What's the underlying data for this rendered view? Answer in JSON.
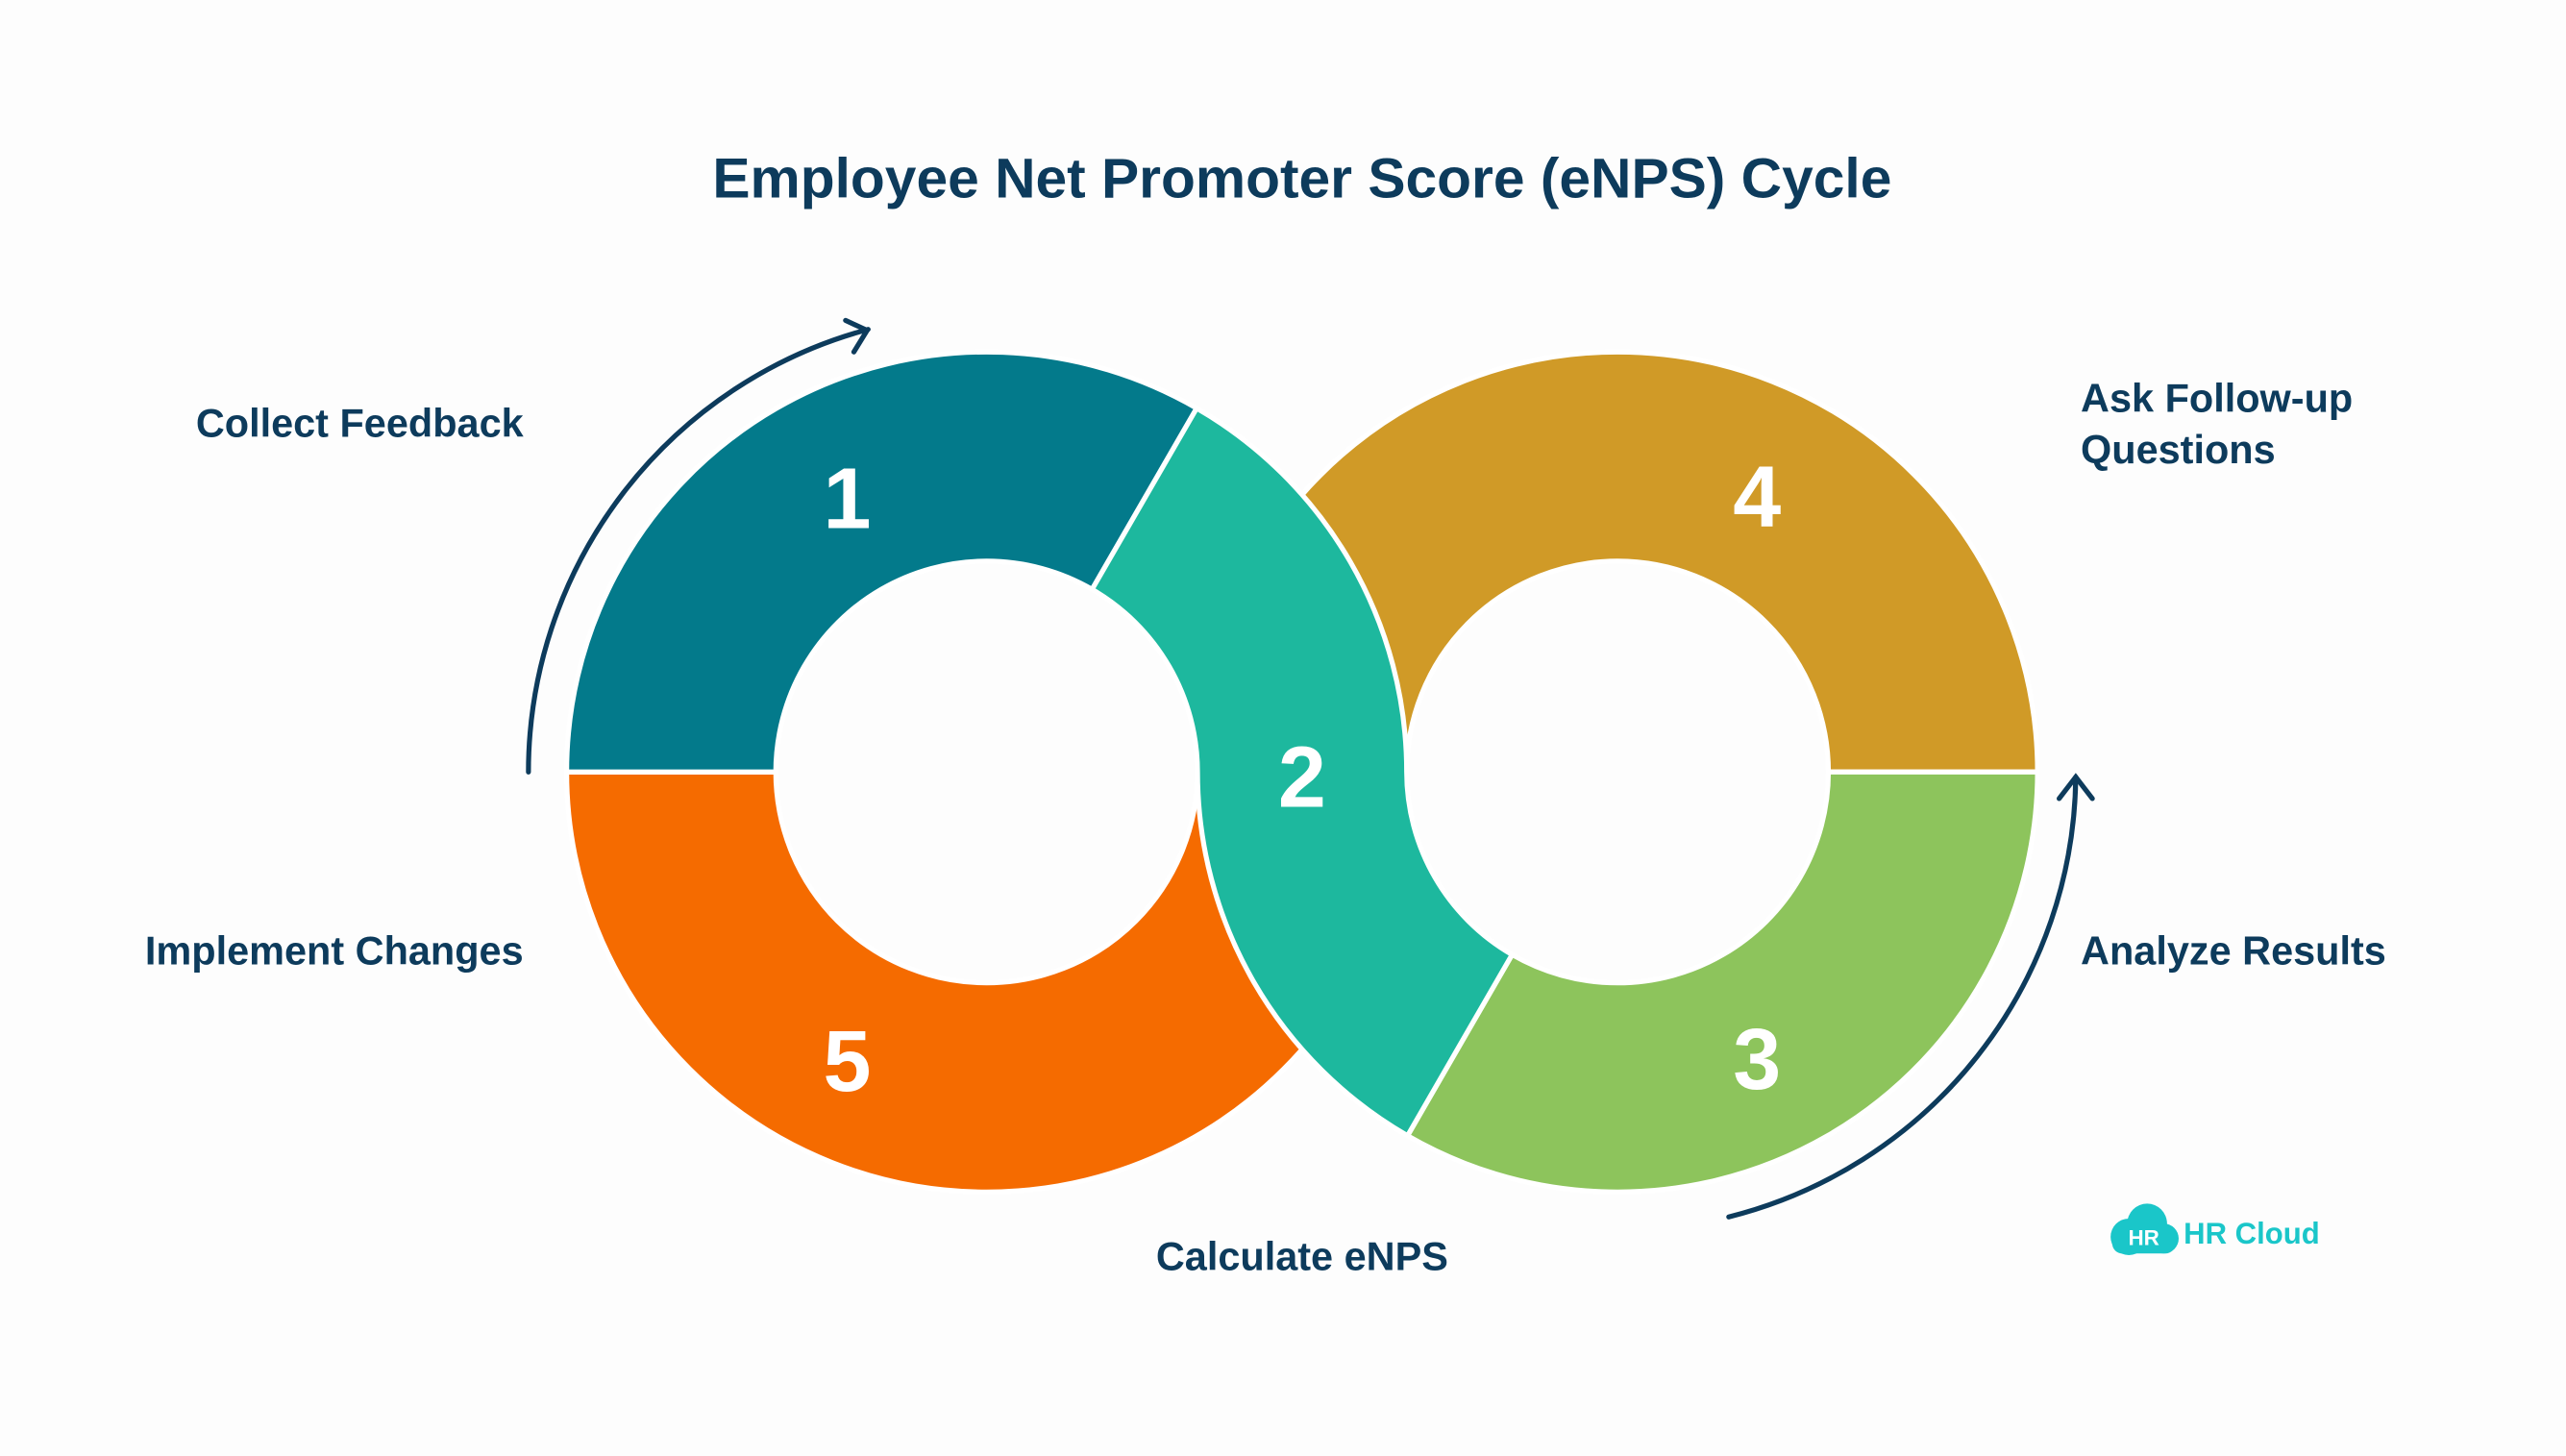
{
  "title": "Employee Net Promoter Score (eNPS) Cycle",
  "steps": [
    {
      "number": "1",
      "label": "Collect Feedback",
      "color": "#037a8b"
    },
    {
      "number": "2",
      "label": "Calculate eNPS",
      "color": "#1db89e"
    },
    {
      "number": "3",
      "label": "Analyze Results",
      "color": "#8dc45c"
    },
    {
      "number": "4",
      "label_line1": "Ask Follow-up",
      "label_line2": "Questions",
      "color": "#d09a27"
    },
    {
      "number": "5",
      "label": "Implement Changes",
      "color": "#f56b00"
    }
  ],
  "logo": {
    "badge": "HR",
    "text": "HR Cloud",
    "color": "#1ac6c9"
  },
  "colors": {
    "text": "#0d3b5c",
    "arrow": "#0d3b5c"
  }
}
